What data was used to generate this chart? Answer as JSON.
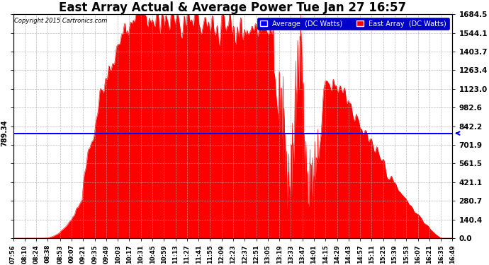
{
  "title": "East Array Actual & Average Power Tue Jan 27 16:57",
  "copyright": "Copyright 2015 Cartronics.com",
  "average_value": 789.34,
  "average_label": "789.34",
  "ymax": 1684.5,
  "yticks": [
    0.0,
    140.4,
    280.7,
    421.1,
    561.5,
    701.9,
    842.2,
    982.6,
    1123.0,
    1263.4,
    1403.7,
    1544.1,
    1684.5
  ],
  "ytick_labels": [
    "0.0",
    "140.4",
    "280.7",
    "421.1",
    "561.5",
    "701.9",
    "842.2",
    "982.6",
    "1123.0",
    "1263.4",
    "1403.7",
    "1544.1",
    "1684.5"
  ],
  "background_color": "#ffffff",
  "fill_color": "#ff0000",
  "line_color": "#ff0000",
  "average_line_color": "#0000ff",
  "grid_color": "#aaaaaa",
  "title_fontsize": 12,
  "legend_labels": [
    "Average  (DC Watts)",
    "East Array  (DC Watts)"
  ],
  "legend_colors": [
    "#0000ff",
    "#ff0000"
  ],
  "tick_times": [
    "07:56",
    "08:10",
    "08:24",
    "08:38",
    "08:53",
    "09:07",
    "09:21",
    "09:35",
    "09:49",
    "10:03",
    "10:17",
    "10:31",
    "10:45",
    "10:59",
    "11:13",
    "11:27",
    "11:41",
    "11:55",
    "12:09",
    "12:23",
    "12:37",
    "12:51",
    "13:05",
    "13:19",
    "13:33",
    "13:47",
    "14:01",
    "14:15",
    "14:29",
    "14:43",
    "14:57",
    "15:11",
    "15:25",
    "15:39",
    "15:53",
    "16:07",
    "16:21",
    "16:35",
    "16:49"
  ]
}
